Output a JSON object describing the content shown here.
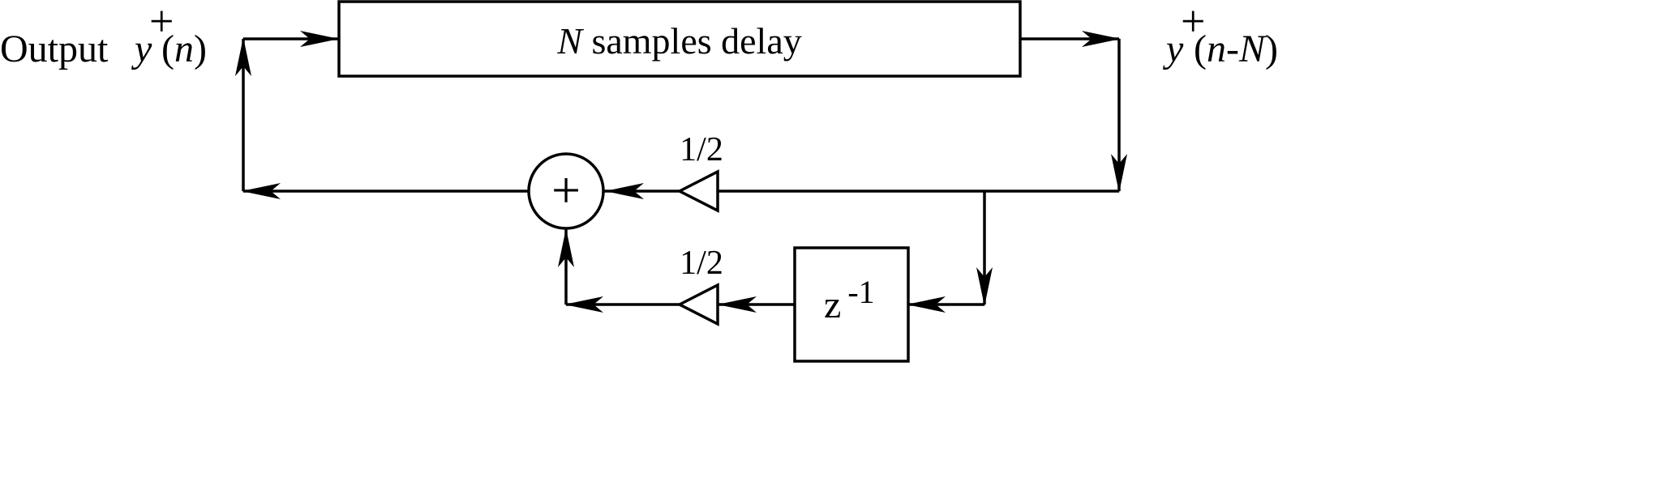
{
  "labels": {
    "output": "Output",
    "y": "y",
    "plus_superscript": "+",
    "input_arg": "(n)",
    "delayed_arg_open": "(",
    "delayed_arg_n": "n",
    "delayed_arg_minus": "-",
    "delayed_arg_N": "N",
    "delayed_arg_close": ")",
    "input_n": "n"
  },
  "blocks": {
    "delay_N": "N",
    "delay_text": " samples delay",
    "unit_delay_base": "z",
    "unit_delay_exp": "-1",
    "adder_symbol": "+"
  },
  "gains": {
    "upper": "1/2",
    "lower": "1/2"
  },
  "colors": {
    "stroke": "#000000",
    "background": "#ffffff"
  }
}
